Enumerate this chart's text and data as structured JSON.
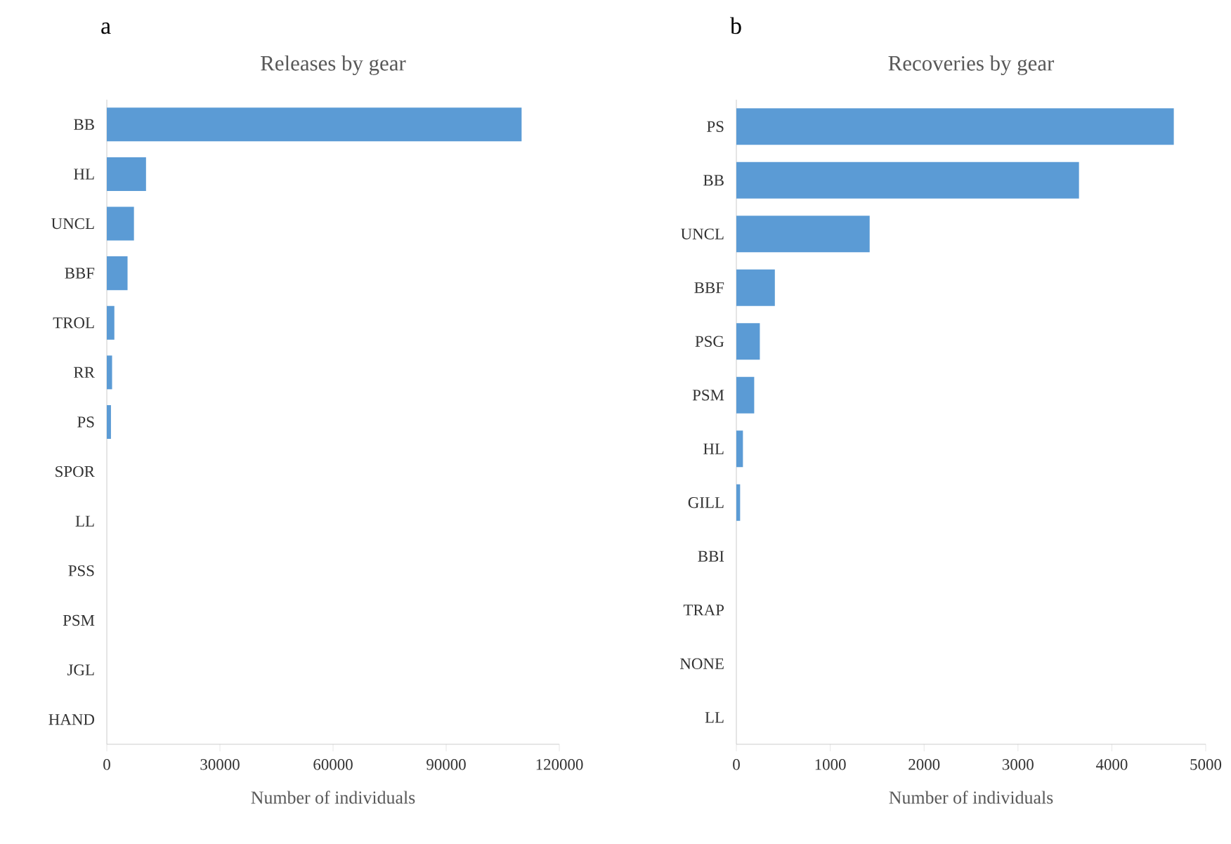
{
  "chart_data": [
    {
      "type": "bar",
      "orientation": "horizontal",
      "title": "Releases by gear",
      "xlabel": "Number of individuals",
      "annotations": [
        "a"
      ],
      "categories": [
        "BB",
        "HL",
        "UNCL",
        "BBF",
        "TROL",
        "RR",
        "PS",
        "SPOR",
        "LL",
        "PSS",
        "PSM",
        "JGL",
        "HAND"
      ],
      "values": [
        110000,
        10400,
        7200,
        5500,
        2000,
        1400,
        1100,
        0,
        0,
        0,
        0,
        0,
        0
      ],
      "color": "#5b9bd5",
      "xlim": [
        0,
        120000
      ],
      "xticks": [
        0,
        30000,
        60000,
        90000,
        120000
      ]
    },
    {
      "type": "bar",
      "orientation": "horizontal",
      "title": "Recoveries by gear",
      "xlabel": "Number of individuals",
      "annotations": [
        "b"
      ],
      "categories": [
        "PS",
        "BB",
        "UNCL",
        "BBF",
        "PSG",
        "PSM",
        "HL",
        "GILL",
        "BBI",
        "TRAP",
        "NONE",
        "LL"
      ],
      "values": [
        4660,
        3650,
        1420,
        410,
        250,
        190,
        70,
        40,
        0,
        0,
        0,
        0
      ],
      "color": "#5b9bd5",
      "xlim": [
        0,
        5000
      ],
      "xticks": [
        0,
        1000,
        2000,
        3000,
        4000,
        5000
      ]
    }
  ]
}
